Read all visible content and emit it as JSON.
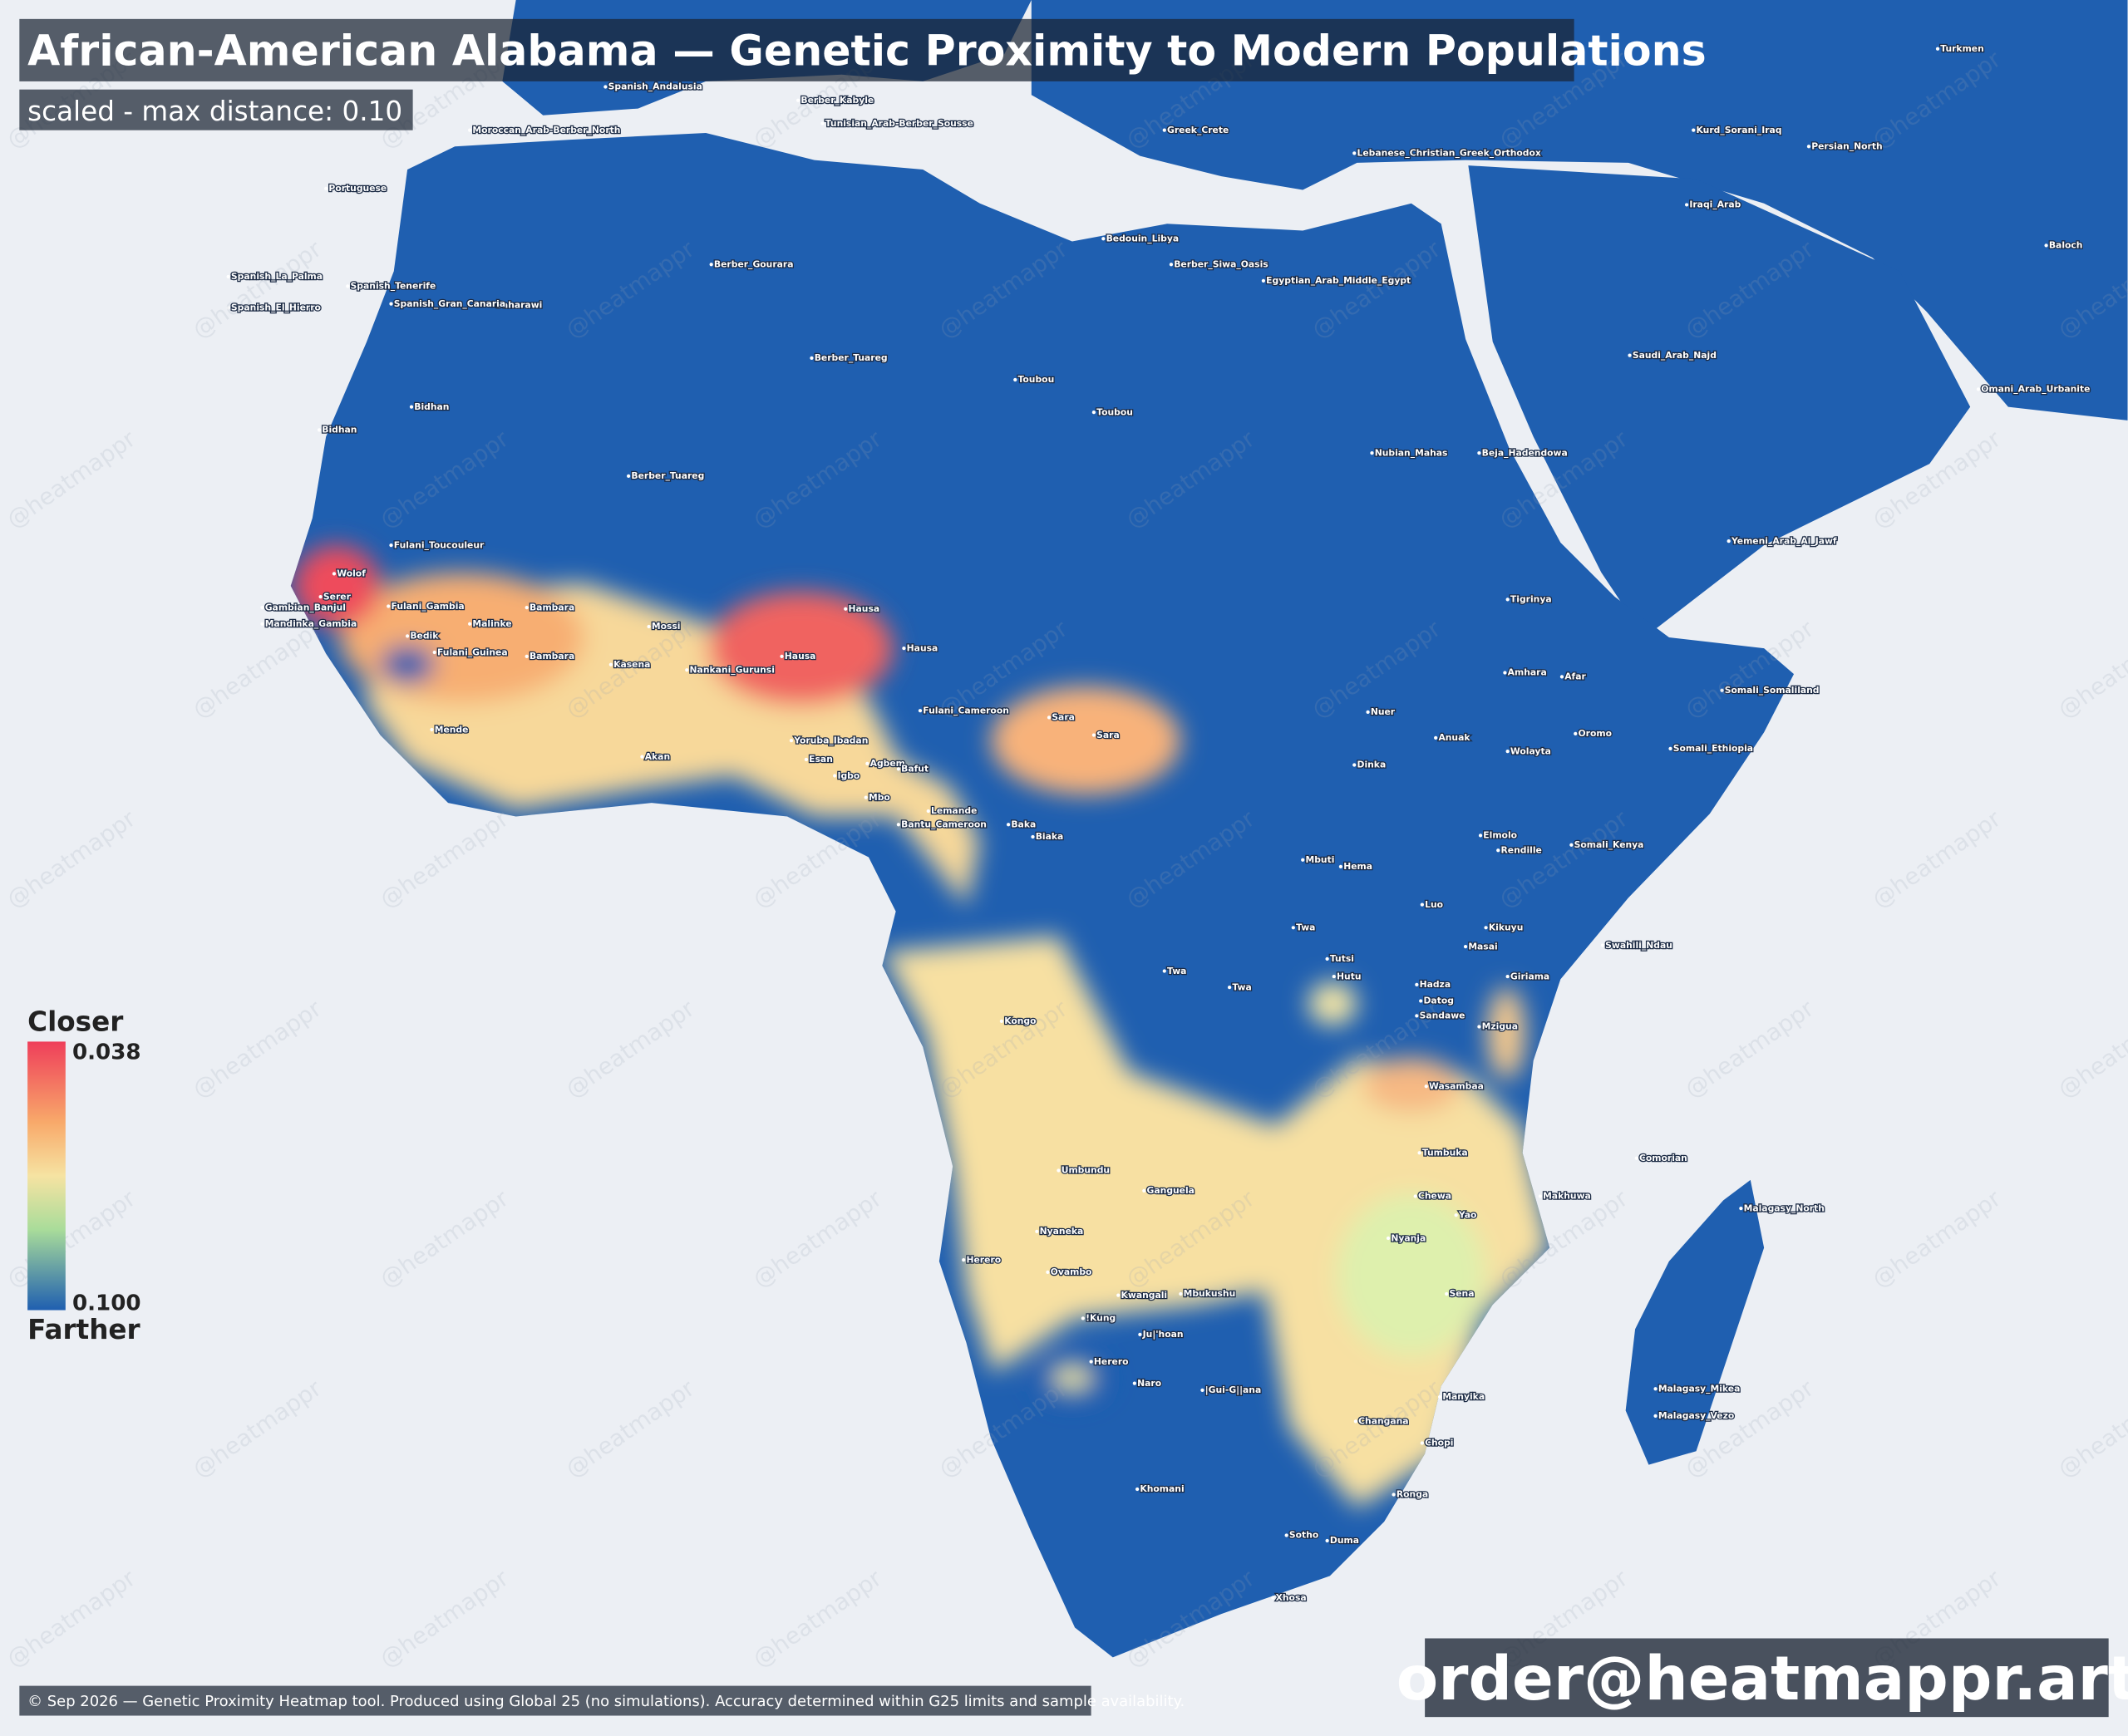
{
  "header": {
    "title": "African-American Alabama — Genetic Proximity to Modern Populations",
    "subtitle": "scaled - max distance: 0.10"
  },
  "legend": {
    "top_label": "Closer",
    "bottom_label": "Farther",
    "min": 0.038,
    "max": {
      "value": 0.1,
      "label": "0.100"
    }
  },
  "watermark": "@heatmappr",
  "footer": {
    "note": "© Sep 2026 — Genetic Proximity Heatmap tool. Produced using Global 25 (no simulations). Accuracy determined within G25 limits and sample availability.",
    "contact": "order@heatmappr.art"
  },
  "places": [
    "Wolof",
    "Serer",
    "Fulani_Toucouleur",
    "Fulani_Gambia",
    "Mandinka_Gambia",
    "Gambian_Banjul",
    "Malinke",
    "Bambara",
    "Bambara",
    "Mossi",
    "Kasena",
    "Nankani_Gurunsi",
    "Akan",
    "Mende",
    "Fulani_Guinea",
    "Bedik",
    "Hausa",
    "Hausa",
    "Hausa",
    "Yoruba_Ibadan",
    "Esan",
    "Igbo",
    "Agbem",
    "Bafut",
    "Mbo",
    "Bantu_Cameroon",
    "Lemande",
    "Fulani_Cameroon",
    "Sara",
    "Sara",
    "Baka",
    "Biaka",
    "Kongo",
    "Umbundu",
    "Ganguela",
    "Nyaneka",
    "Herero",
    "Ovambo",
    "Kwangali",
    "Mbukushu",
    "!Kung",
    "Ju|'hoan",
    "Herero",
    "Naro",
    "|Gui-G||ana",
    "Khomani",
    "Xhosa",
    "Sotho",
    "Duma",
    "Ronga",
    "Changana",
    "Chopi",
    "Manyika",
    "Nyanja",
    "Yao",
    "Makhuwa",
    "Tumbuka",
    "Chewa",
    "Wasambaa",
    "Sena",
    "Comorian",
    "Malagasy_North",
    "Malagasy_Mikea",
    "Malagasy_Vezo",
    "Somali_Somaliland",
    "Somali_Ethiopia",
    "Amhara",
    "Oromo",
    "Tigrinya",
    "Beja_Hadendowa",
    "Nubian_Mahas",
    "Toubou",
    "Toubou",
    "Berber_Tuareg",
    "Berber_Tuareg",
    "Bidhan",
    "Bidhan",
    "Saharawi",
    "Berber_Gourara",
    "Berber_Siwa_Oasis",
    "Egyptian_Arab_Middle_Egypt",
    "Bedouin_Libya",
    "Saudi_Arab_Najd",
    "Yemeni_Arab_Al_Jawf",
    "Omani_Arab_Urbanite",
    "Persian_North",
    "Baloch",
    "Turkmen",
    "Iraqi_Arab",
    "Kurd_Sorani_Iraq",
    "Spanish_Andalusia",
    "Moroccan_Arab-Berber_North",
    "Berber_Kabyle",
    "Tunisian_Arab-Berber_Sousse",
    "Greek_Crete",
    "Lebanese_Christian_Greek_Orthodox",
    "Portuguese",
    "Spanish_Gran_Canaria",
    "Spanish_Tenerife",
    "Spanish_La_Palma",
    "Spanish_El_Hierro",
    "Mbuti",
    "Hema",
    "Luo",
    "Masai",
    "Kikuyu",
    "Hutu",
    "Tutsi",
    "Twa",
    "Twa",
    "Twa",
    "Dinka",
    "Nuer",
    "Anuak",
    "Sandawe",
    "Hadza",
    "Datog",
    "Wolayta",
    "Afar",
    "Elmolo",
    "Rendille",
    "Somali_Kenya",
    "Swahili_Ndau",
    "Giriama",
    "Mzigua"
  ]
}
